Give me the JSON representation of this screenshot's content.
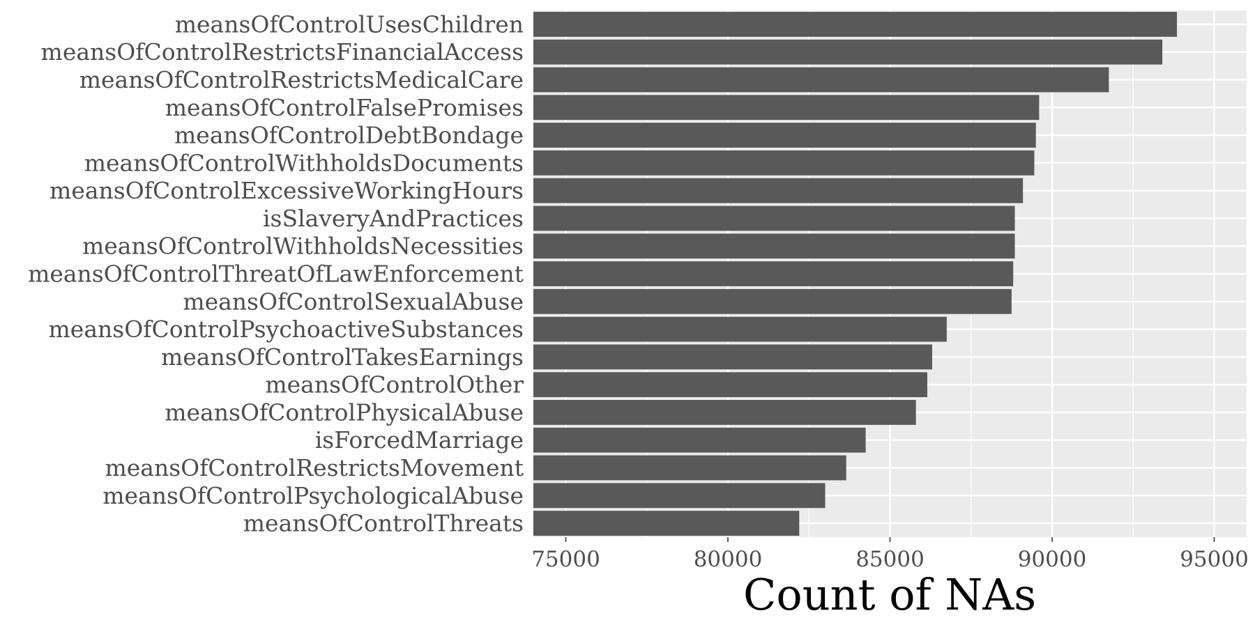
{
  "chart_data": {
    "type": "bar",
    "orientation": "horizontal",
    "title": "",
    "xlabel": "Count of NAs",
    "ylabel": "",
    "xlim": [
      74000,
      96000
    ],
    "xticks": [
      75000,
      80000,
      85000,
      90000,
      95000
    ],
    "xtick_labels": [
      "75000",
      "80000",
      "85000",
      "90000",
      "95000"
    ],
    "grid": true,
    "legend": "none",
    "categories": [
      "meansOfControlUsesChildren",
      "meansOfControlRestrictsFinancialAccess",
      "meansOfControlRestrictsMedicalCare",
      "meansOfControlFalsePromises",
      "meansOfControlDebtBondage",
      "meansOfControlWithholdsDocuments",
      "meansOfControlExcessiveWorkingHours",
      "isSlaveryAndPractices",
      "meansOfControlWithholdsNecessities",
      "meansOfControlThreatOfLawEnforcement",
      "meansOfControlSexualAbuse",
      "meansOfControlPsychoactiveSubstances",
      "meansOfControlTakesEarnings",
      "meansOfControlOther",
      "meansOfControlPhysicalAbuse",
      "isForcedMarriage",
      "meansOfControlRestrictsMovement",
      "meansOfControlPsychologicalAbuse",
      "meansOfControlThreats"
    ],
    "values": [
      93850,
      93400,
      91750,
      89600,
      89500,
      89450,
      89100,
      88850,
      88850,
      88800,
      88750,
      86750,
      86300,
      86150,
      85800,
      84250,
      83650,
      83000,
      82200
    ],
    "colors": {
      "bar": "#595959",
      "panel": "#ebebeb",
      "grid": "#ffffff",
      "background": "#ffffff"
    }
  }
}
